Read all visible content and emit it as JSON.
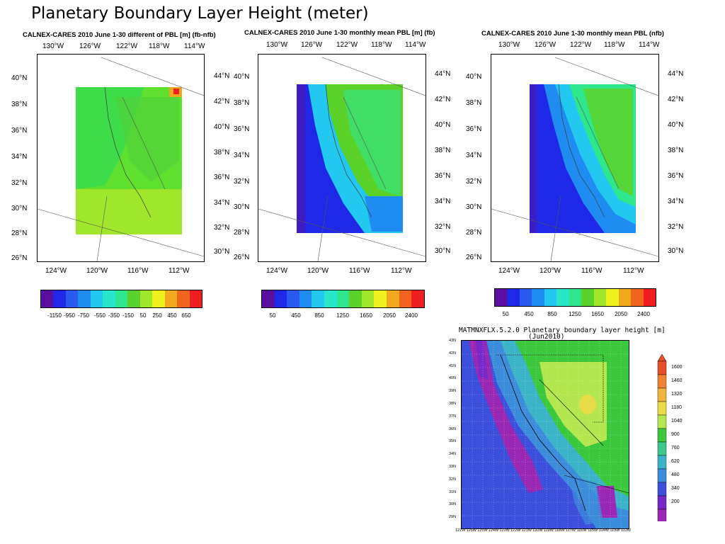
{
  "slide_title": "Planetary Boundary Layer Height (meter)",
  "chart_data": [
    {
      "type": "heatmap",
      "title": "CALNEX-CARES 2010 June 1-30 different of PBL [m] (fb-nfb)",
      "x_ticks": [
        "124°W",
        "120°W",
        "116°W",
        "112°W"
      ],
      "top_ticks": [
        "130°W",
        "126°W",
        "122°W",
        "118°W",
        "114°W"
      ],
      "y_ticks": [
        "40°N",
        "38°N",
        "36°N",
        "34°N",
        "32°N",
        "30°N",
        "28°N",
        "26°N"
      ],
      "right_ticks": [
        "44°N",
        "42°N",
        "40°N",
        "38°N",
        "36°N",
        "34°N",
        "32°N",
        "30°N"
      ],
      "colorbar_labels": [
        "-1150",
        "-950",
        "-750",
        "-550",
        "-350",
        "-150",
        "50",
        "250",
        "450",
        "650"
      ],
      "colorbar_colors": [
        "#5a0fa0",
        "#1f28e6",
        "#2a5af0",
        "#1e8cf0",
        "#22c8f0",
        "#28e6c8",
        "#2ee68c",
        "#5ad22a",
        "#a0e62a",
        "#f0f01e",
        "#f0a81e",
        "#f0641e",
        "#f01e1e"
      ]
    },
    {
      "type": "heatmap",
      "title": "CALNEX-CARES 2010 June 1-30 monthly mean PBL [m] (fb)",
      "x_ticks": [
        "124°W",
        "120°W",
        "116°W",
        "112°W"
      ],
      "top_ticks": [
        "130°W",
        "126°W",
        "122°W",
        "118°W",
        "114°W"
      ],
      "y_ticks": [
        "40°N",
        "38°N",
        "36°N",
        "34°N",
        "32°N",
        "30°N",
        "28°N",
        "26°N"
      ],
      "right_ticks": [
        "44°N",
        "42°N",
        "40°N",
        "38°N",
        "36°N",
        "34°N",
        "32°N",
        "30°N"
      ],
      "colorbar_labels": [
        "50",
        "450",
        "850",
        "1250",
        "1650",
        "2050",
        "2400"
      ],
      "colorbar_colors": [
        "#5a0fa0",
        "#1f28e6",
        "#2a5af0",
        "#1e8cf0",
        "#22c8f0",
        "#28e6c8",
        "#2ee68c",
        "#5ad22a",
        "#a0e62a",
        "#f0f01e",
        "#f0a81e",
        "#f0641e",
        "#f01e1e"
      ]
    },
    {
      "type": "heatmap",
      "title": "CALNEX-CARES 2010 June 1-30 monthly mean PBL (nfb)",
      "x_ticks": [
        "124°W",
        "120°W",
        "116°W",
        "112°W"
      ],
      "top_ticks": [
        "130°W",
        "126°W",
        "122°W",
        "118°W",
        "114°W"
      ],
      "y_ticks": [
        "40°N",
        "38°N",
        "36°N",
        "34°N",
        "32°N",
        "30°N",
        "28°N",
        "26°N"
      ],
      "right_ticks": [
        "44°N",
        "42°N",
        "40°N",
        "38°N",
        "36°N",
        "34°N",
        "32°N",
        "30°N"
      ],
      "colorbar_labels": [
        "50",
        "450",
        "850",
        "1250",
        "1650",
        "2050",
        "2400"
      ],
      "colorbar_colors": [
        "#5a0fa0",
        "#1f28e6",
        "#2a5af0",
        "#1e8cf0",
        "#22c8f0",
        "#28e6c8",
        "#2ee68c",
        "#5ad22a",
        "#a0e62a",
        "#f0f01e",
        "#f0a81e",
        "#f0641e",
        "#f01e1e"
      ]
    },
    {
      "type": "heatmap",
      "title_line1": "MATMNXFLX.5.2.0 Planetary boundary layer height [m]",
      "title_line2": "(Jun2010)",
      "x_ticks": [
        "127W",
        "126W",
        "125W",
        "124W",
        "123W",
        "122W",
        "121W",
        "120W",
        "119W",
        "118W",
        "117W",
        "116W",
        "115W",
        "114W",
        "113W",
        "112W"
      ],
      "y_ticks": [
        "43N",
        "42N",
        "41N",
        "40N",
        "39N",
        "38N",
        "37N",
        "36N",
        "35N",
        "34N",
        "33N",
        "32N",
        "31N",
        "30N",
        "29N"
      ],
      "colorbar_labels": [
        "1600",
        "1460",
        "1320",
        "1180",
        "1040",
        "900",
        "760",
        "620",
        "480",
        "340",
        "200"
      ],
      "colorbar_colors": [
        "#e8502a",
        "#f08232",
        "#f0b43c",
        "#e6dc46",
        "#b4e650",
        "#3cc83c",
        "#3cc88c",
        "#3cb4c8",
        "#3c8cdc",
        "#3c50dc",
        "#7828c8",
        "#9b28b4"
      ]
    }
  ]
}
